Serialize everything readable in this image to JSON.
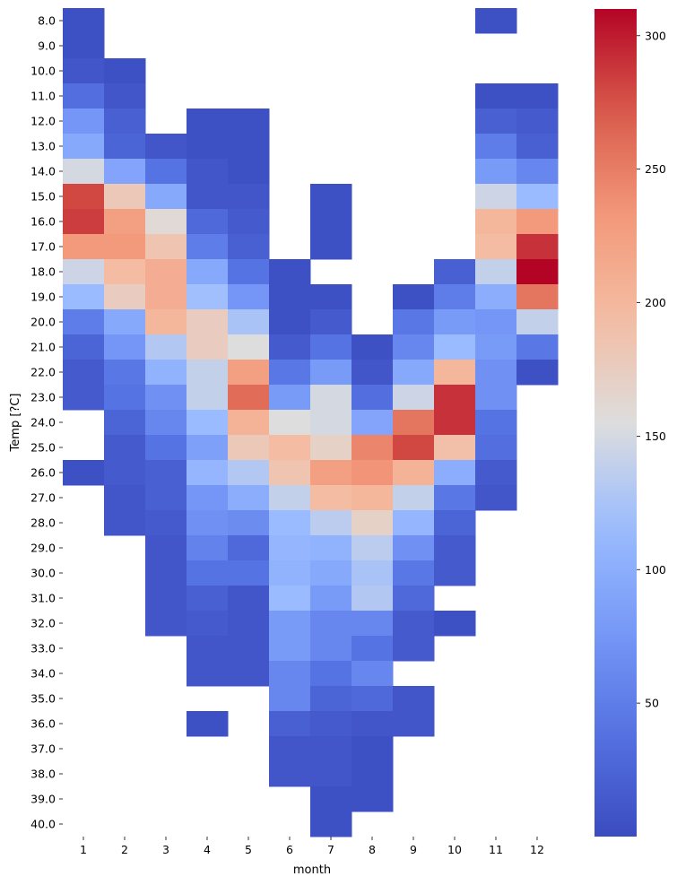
{
  "chart_data": {
    "type": "heatmap",
    "xlabel": "month",
    "ylabel": "Temp [?C]",
    "x_categories": [
      "1",
      "2",
      "3",
      "4",
      "5",
      "6",
      "7",
      "8",
      "9",
      "10",
      "11",
      "12"
    ],
    "y_categories": [
      "8.0",
      "9.0",
      "10.0",
      "11.0",
      "12.0",
      "13.0",
      "14.0",
      "15.0",
      "16.0",
      "17.0",
      "18.0",
      "19.0",
      "20.0",
      "21.0",
      "22.0",
      "23.0",
      "24.0",
      "25.0",
      "26.0",
      "27.0",
      "28.0",
      "29.0",
      "30.0",
      "31.0",
      "32.0",
      "33.0",
      "34.0",
      "35.0",
      "36.0",
      "37.0",
      "38.0",
      "39.0",
      "40.0"
    ],
    "values": [
      [
        5,
        null,
        null,
        null,
        null,
        null,
        null,
        null,
        null,
        null,
        5,
        null
      ],
      [
        5,
        null,
        null,
        null,
        null,
        null,
        null,
        null,
        null,
        null,
        null,
        null
      ],
      [
        10,
        5,
        null,
        null,
        null,
        null,
        null,
        null,
        null,
        null,
        null,
        null
      ],
      [
        35,
        10,
        null,
        null,
        null,
        null,
        null,
        null,
        null,
        null,
        5,
        5
      ],
      [
        75,
        20,
        null,
        5,
        5,
        null,
        null,
        null,
        null,
        null,
        20,
        15
      ],
      [
        95,
        25,
        10,
        5,
        5,
        null,
        null,
        null,
        null,
        null,
        50,
        20
      ],
      [
        150,
        90,
        40,
        10,
        5,
        null,
        null,
        null,
        null,
        null,
        80,
        60
      ],
      [
        280,
        180,
        95,
        10,
        10,
        null,
        5,
        null,
        null,
        null,
        145,
        115
      ],
      [
        285,
        225,
        160,
        30,
        15,
        null,
        5,
        null,
        null,
        null,
        200,
        230
      ],
      [
        230,
        230,
        185,
        50,
        20,
        null,
        5,
        null,
        null,
        null,
        195,
        290
      ],
      [
        145,
        195,
        210,
        95,
        40,
        5,
        null,
        null,
        null,
        20,
        140,
        310
      ],
      [
        115,
        175,
        210,
        120,
        75,
        5,
        5,
        null,
        5,
        50,
        100,
        255
      ],
      [
        50,
        95,
        200,
        175,
        125,
        5,
        15,
        null,
        45,
        80,
        75,
        140
      ],
      [
        25,
        75,
        130,
        175,
        155,
        15,
        40,
        5,
        60,
        115,
        80,
        45
      ],
      [
        15,
        45,
        105,
        140,
        225,
        45,
        80,
        10,
        95,
        200,
        70,
        5
      ],
      [
        15,
        40,
        70,
        140,
        260,
        80,
        150,
        35,
        145,
        290,
        70,
        null
      ],
      [
        null,
        25,
        60,
        115,
        205,
        155,
        150,
        90,
        255,
        290,
        40,
        null
      ],
      [
        null,
        15,
        40,
        85,
        180,
        195,
        170,
        245,
        280,
        190,
        35,
        null
      ],
      [
        5,
        15,
        20,
        110,
        130,
        185,
        225,
        235,
        205,
        100,
        15,
        null
      ],
      [
        null,
        10,
        20,
        75,
        100,
        140,
        195,
        200,
        140,
        45,
        10,
        null
      ],
      [
        null,
        10,
        15,
        70,
        65,
        115,
        135,
        170,
        110,
        25,
        null,
        null
      ],
      [
        null,
        null,
        10,
        55,
        30,
        110,
        105,
        135,
        70,
        15,
        null,
        null
      ],
      [
        null,
        null,
        10,
        40,
        40,
        105,
        95,
        125,
        45,
        15,
        null,
        null
      ],
      [
        null,
        null,
        10,
        20,
        10,
        115,
        80,
        130,
        30,
        null,
        null,
        null
      ],
      [
        null,
        null,
        10,
        15,
        10,
        80,
        60,
        60,
        15,
        5,
        null,
        null
      ],
      [
        null,
        null,
        null,
        10,
        10,
        80,
        60,
        40,
        15,
        null,
        null,
        null
      ],
      [
        null,
        null,
        null,
        10,
        10,
        60,
        40,
        60,
        null,
        null,
        null,
        null
      ],
      [
        null,
        null,
        null,
        null,
        null,
        60,
        25,
        30,
        10,
        null,
        null,
        null
      ],
      [
        null,
        null,
        null,
        5,
        null,
        20,
        15,
        10,
        10,
        null,
        null,
        null
      ],
      [
        null,
        null,
        null,
        null,
        null,
        10,
        10,
        5,
        null,
        null,
        null,
        null
      ],
      [
        null,
        null,
        null,
        null,
        null,
        10,
        10,
        5,
        null,
        null,
        null,
        null
      ],
      [
        null,
        null,
        null,
        null,
        null,
        null,
        5,
        5,
        null,
        null,
        null,
        null
      ],
      [
        null,
        null,
        null,
        null,
        null,
        null,
        5,
        null,
        null,
        null,
        null,
        null
      ]
    ],
    "vmin": 0,
    "vmax": 310,
    "colormap": "coolwarm",
    "colorbar_ticks": [
      50,
      100,
      150,
      200,
      250,
      300
    ]
  }
}
